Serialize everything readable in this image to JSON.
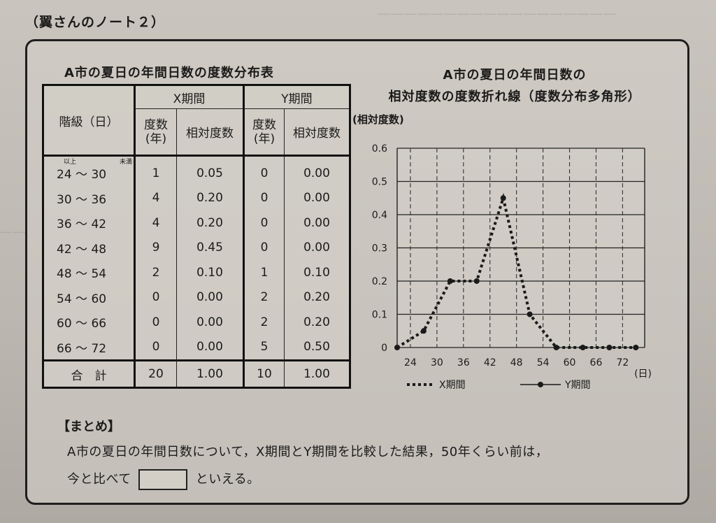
{
  "note_title": "（翼さんのノート２）",
  "table": {
    "caption": "A市の夏日の年間日数の度数分布表",
    "class_header": "階級（日）",
    "x_period": "X期間",
    "y_period": "Y期間",
    "freq_header_line1": "度数",
    "freq_header_line2": "(年)",
    "rel_header": "相対度数",
    "inclusive_label": "以上",
    "exclusive_label": "未満",
    "rows": [
      {
        "lo": "24",
        "hi": "30",
        "xf": "1",
        "xr": "0.05",
        "yf": "0",
        "yr": "0.00"
      },
      {
        "lo": "30",
        "hi": "36",
        "xf": "4",
        "xr": "0.20",
        "yf": "0",
        "yr": "0.00"
      },
      {
        "lo": "36",
        "hi": "42",
        "xf": "4",
        "xr": "0.20",
        "yf": "0",
        "yr": "0.00"
      },
      {
        "lo": "42",
        "hi": "48",
        "xf": "9",
        "xr": "0.45",
        "yf": "0",
        "yr": "0.00"
      },
      {
        "lo": "48",
        "hi": "54",
        "xf": "2",
        "xr": "0.10",
        "yf": "1",
        "yr": "0.10"
      },
      {
        "lo": "54",
        "hi": "60",
        "xf": "0",
        "xr": "0.00",
        "yf": "2",
        "yr": "0.20"
      },
      {
        "lo": "60",
        "hi": "66",
        "xf": "0",
        "xr": "0.00",
        "yf": "2",
        "yr": "0.20"
      },
      {
        "lo": "66",
        "hi": "72",
        "xf": "0",
        "xr": "0.00",
        "yf": "5",
        "yr": "0.50"
      }
    ],
    "tilde": "～",
    "total_label": "合　計",
    "total": {
      "xf": "20",
      "xr": "1.00",
      "yf": "10",
      "yr": "1.00"
    }
  },
  "chart_title_line1": "A市の夏日の年間日数の",
  "chart_title_line2": "相対度数の度数折れ線（度数分布多角形）",
  "summary": {
    "heading": "【まとめ】",
    "line1": "A市の夏日の年間日数について，X期間とY期間を比較した結果，50年くらい前は，",
    "line2_before": "今と比べて",
    "line2_after": "といえる。"
  },
  "chart_data": {
    "type": "line",
    "ylabel": "(相対度数)",
    "xlabel": "(日)",
    "ylim": [
      0,
      0.6
    ],
    "yticks": [
      "0.6",
      "0.5",
      "0.4",
      "0.3",
      "0.2",
      "0.1",
      "0"
    ],
    "xticks": [
      "24",
      "30",
      "36",
      "42",
      "48",
      "54",
      "60",
      "66",
      "72"
    ],
    "x": [
      21,
      27,
      33,
      39,
      45,
      51,
      57,
      63,
      69,
      75
    ],
    "series": [
      {
        "name": "X期間",
        "style": "dotted",
        "values": [
          0,
          0.05,
          0.2,
          0.2,
          0.45,
          0.1,
          0.0,
          0.0,
          0.0,
          0.0
        ]
      },
      {
        "name": "Y期間",
        "style": "solid",
        "values": null
      }
    ],
    "grid": true,
    "legend_position": "bottom"
  },
  "colors": {
    "ink": "#1c1b1a",
    "paper": "#c6c2bb"
  }
}
